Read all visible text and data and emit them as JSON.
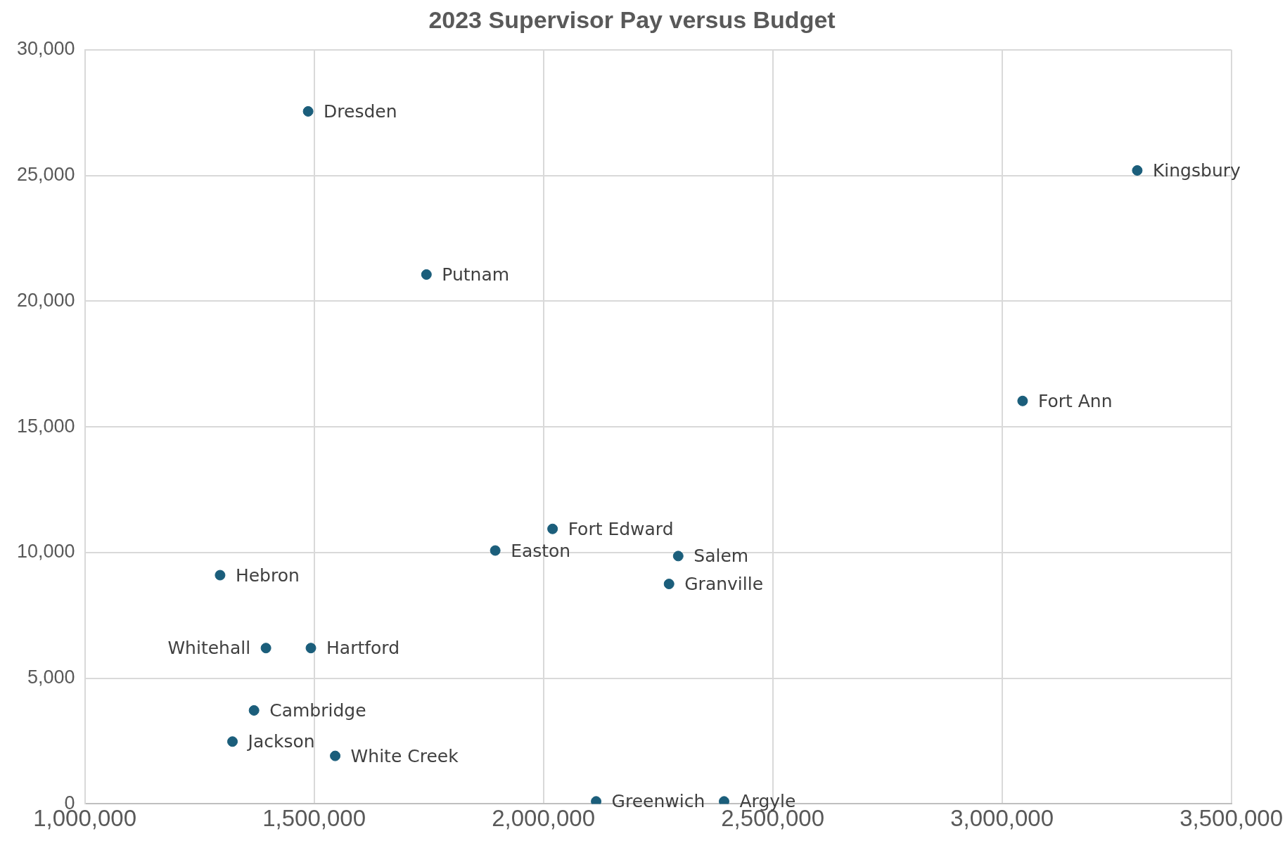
{
  "chart_data": {
    "type": "scatter",
    "title": "2023 Supervisor Pay versus Budget",
    "x": [
      1487000,
      3295000,
      1745000,
      3045000,
      2020000,
      1895000,
      2294000,
      2274000,
      1295000,
      1395000,
      1493000,
      1369000,
      1322000,
      1546000,
      2115000,
      2394000
    ],
    "series": [
      {
        "color": "#1b5e7b",
        "values": [
          27550,
          25200,
          21060,
          16030,
          10940,
          10080,
          9860,
          8750,
          9100,
          6200,
          6200,
          3720,
          2480,
          1910,
          100,
          100
        ]
      }
    ],
    "xlim": [
      1000000,
      3500000
    ],
    "xticks": [
      {
        "value": 1000000,
        "label": "1,000,000"
      },
      {
        "value": 1500000,
        "label": "1,500,000"
      },
      {
        "value": 2000000,
        "label": "2,000,000"
      },
      {
        "value": 2500000,
        "label": "2,500,000"
      },
      {
        "value": 3000000,
        "label": "3,000,000"
      },
      {
        "value": 3500000,
        "label": "3,500,000"
      }
    ],
    "ylim": [
      0,
      30000
    ],
    "yticks": [
      0,
      {
        "value": 5000,
        "label": "5,000"
      },
      {
        "value": 10000,
        "label": "10,000"
      },
      {
        "value": 15000,
        "label": "15,000"
      },
      {
        "value": 20000,
        "label": "20,000"
      },
      {
        "value": 25000,
        "label": "25,000"
      },
      {
        "value": 30000,
        "label": "30,000"
      }
    ],
    "grid": true,
    "legend": false,
    "marker": "circle",
    "annotations": [
      {
        "text": "Dresden",
        "x": 1487000,
        "y": 27550
      },
      {
        "text": "Kingsbury",
        "x": 3295000,
        "y": 25200
      },
      {
        "text": "Putnam",
        "x": 1745000,
        "y": 21060
      },
      {
        "text": "Fort Ann",
        "x": 3045000,
        "y": 16030
      },
      {
        "text": "Fort Edward",
        "x": 2020000,
        "y": 10940
      },
      {
        "text": "Easton",
        "x": 1895000,
        "y": 10080
      },
      {
        "text": "Salem",
        "x": 2294000,
        "y": 9860
      },
      {
        "text": "Granville",
        "x": 2274000,
        "y": 8750
      },
      {
        "text": "Hebron",
        "x": 1295000,
        "y": 9100
      },
      {
        "text": "Whitehall",
        "x": 1395000,
        "y": 6200
      },
      {
        "text": "Hartford",
        "x": 1493000,
        "y": 6200
      },
      {
        "text": "Cambridge",
        "x": 1369000,
        "y": 3720
      },
      {
        "text": "Jackson",
        "x": 1322000,
        "y": 2480
      },
      {
        "text": "White Creek",
        "x": 1546000,
        "y": 1910
      },
      {
        "text": "Greenwich",
        "x": 2115000,
        "y": 100
      },
      {
        "text": "Argyle",
        "x": 2394000,
        "y": 100
      }
    ]
  }
}
